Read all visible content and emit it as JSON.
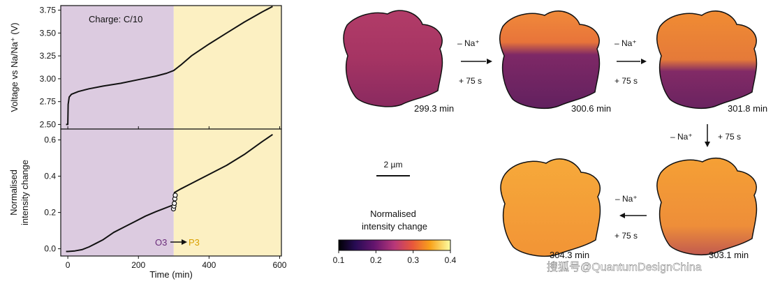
{
  "chart_data": [
    {
      "type": "line",
      "title": "Charge: C/10",
      "xlabel": "",
      "ylabel": "Voltage vs Na/Na⁺ (V)",
      "xlim": [
        -20,
        605
      ],
      "ylim": [
        2.45,
        3.8
      ],
      "yticks": [
        "2.50",
        "2.75",
        "3.00",
        "3.25",
        "3.50",
        "3.75"
      ],
      "regions": [
        {
          "name": "O3",
          "x_range": [
            -20,
            300
          ],
          "color": "#dccbe0"
        },
        {
          "name": "P3",
          "x_range": [
            300,
            605
          ],
          "color": "#fcf0c2"
        }
      ],
      "series": [
        {
          "name": "voltage",
          "x": [
            -5,
            0,
            1,
            4,
            10,
            30,
            60,
            100,
            150,
            200,
            250,
            280,
            300,
            320,
            350,
            400,
            450,
            500,
            550,
            580
          ],
          "y": [
            2.5,
            2.5,
            2.72,
            2.8,
            2.83,
            2.86,
            2.89,
            2.92,
            2.95,
            2.99,
            3.03,
            3.06,
            3.09,
            3.15,
            3.25,
            3.38,
            3.5,
            3.62,
            3.73,
            3.79
          ]
        }
      ]
    },
    {
      "type": "line",
      "title": "",
      "xlabel": "Time (min)",
      "ylabel": "Normalised intensity change",
      "xlim": [
        -20,
        605
      ],
      "ylim": [
        -0.04,
        0.66
      ],
      "xticks": [
        "0",
        "200",
        "400",
        "600"
      ],
      "yticks": [
        "0.0",
        "0.2",
        "0.4",
        "0.6"
      ],
      "annotation": {
        "from": "O3",
        "to": "P3",
        "from_color": "#6a2c7a",
        "to_color": "#d9a000"
      },
      "series": [
        {
          "name": "intensity",
          "x": [
            -5,
            0,
            20,
            40,
            60,
            80,
            100,
            130,
            160,
            190,
            220,
            250,
            270,
            290,
            299,
            302,
            320,
            350,
            400,
            450,
            500,
            550,
            580
          ],
          "y": [
            -0.015,
            -0.015,
            -0.012,
            -0.005,
            0.01,
            0.03,
            0.05,
            0.09,
            0.12,
            0.15,
            0.18,
            0.205,
            0.22,
            0.235,
            0.24,
            0.31,
            0.33,
            0.36,
            0.41,
            0.46,
            0.52,
            0.59,
            0.63
          ]
        },
        {
          "name": "image-markers",
          "x": [
            299.3,
            300.6,
            301.8,
            303.1,
            304.3
          ],
          "y": [
            0.22,
            0.235,
            0.25,
            0.275,
            0.295
          ]
        }
      ]
    }
  ],
  "panels": {
    "ops": [
      {
        "label": "– Na⁺",
        "sub": "+ 75 s"
      },
      {
        "label": "– Na⁺",
        "sub": "+ 75 s"
      },
      {
        "label": "– Na⁺",
        "sub": "+ 75 s"
      },
      {
        "label": "– Na⁺",
        "sub": "+ 75 s"
      }
    ],
    "times": [
      "299.3 min",
      "300.6 min",
      "301.8 min",
      "303.1 min",
      "304.3 min"
    ],
    "scale_bar": "2 µm",
    "colorbar": {
      "title_1": "Normalised",
      "title_2": "intensity change",
      "ticks": [
        "0.1",
        "0.2",
        "0.3",
        "0.4"
      ],
      "colormap": "inferno"
    }
  },
  "watermark": "搜狐号@QuantumDesignChina"
}
